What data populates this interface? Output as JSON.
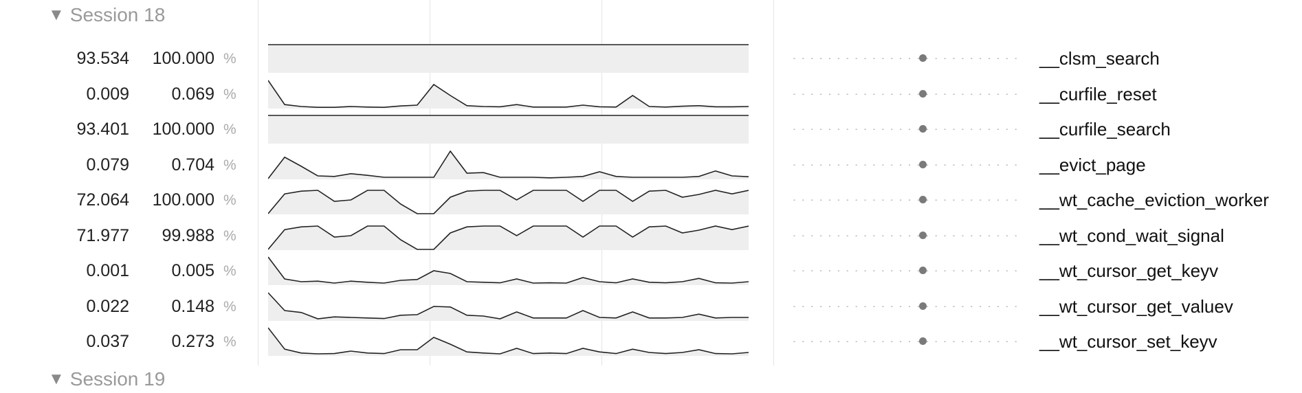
{
  "session": {
    "label": "Session 18",
    "next_label": "Session 19",
    "triangle": "▼"
  },
  "percent_symbol": "%",
  "colors": {
    "spark_fill": "#eeeeee",
    "spark_line": "#222222",
    "knob": "#7a7a7a"
  },
  "rows": [
    {
      "time": "93.534",
      "percent": "100.000",
      "function": "__clsm_search",
      "sparkline": [
        1,
        1,
        1,
        1,
        1,
        1,
        1,
        1,
        1,
        1,
        1,
        1,
        1,
        1,
        1,
        1,
        1,
        1,
        1,
        1,
        1,
        1,
        1,
        1,
        1,
        1,
        1,
        1,
        1,
        1
      ]
    },
    {
      "time": "0.009",
      "percent": "0.069",
      "function": "__curfile_reset",
      "sparkline": [
        1,
        0.12,
        0.05,
        0.02,
        0.02,
        0.05,
        0.03,
        0.02,
        0.07,
        0.1,
        0.85,
        0.45,
        0.08,
        0.05,
        0.04,
        0.12,
        0.03,
        0.03,
        0.03,
        0.1,
        0.04,
        0.03,
        0.45,
        0.05,
        0.03,
        0.06,
        0.08,
        0.04,
        0.04,
        0.05
      ]
    },
    {
      "time": "93.401",
      "percent": "100.000",
      "function": "__curfile_search",
      "sparkline": [
        1,
        1,
        1,
        1,
        1,
        1,
        1,
        1,
        1,
        1,
        1,
        1,
        1,
        1,
        1,
        1,
        1,
        1,
        1,
        1,
        1,
        1,
        1,
        1,
        1,
        1,
        1,
        1,
        1,
        1
      ]
    },
    {
      "time": "0.079",
      "percent": "0.704",
      "function": "__evict_page",
      "sparkline": [
        0,
        0.78,
        0.45,
        0.1,
        0.08,
        0.18,
        0.12,
        0.05,
        0.05,
        0.05,
        0.05,
        1,
        0.2,
        0.22,
        0.05,
        0.05,
        0.05,
        0.03,
        0.05,
        0.08,
        0.25,
        0.08,
        0.05,
        0.05,
        0.05,
        0.05,
        0.08,
        0.28,
        0.1,
        0.07
      ]
    },
    {
      "time": "72.064",
      "percent": "100.000",
      "function": "__wt_cache_eviction_worker",
      "sparkline": [
        0,
        0.72,
        0.82,
        0.85,
        0.45,
        0.5,
        0.85,
        0.85,
        0.35,
        0,
        0,
        0.6,
        0.82,
        0.85,
        0.85,
        0.5,
        0.85,
        0.85,
        0.85,
        0.45,
        0.85,
        0.85,
        0.45,
        0.82,
        0.85,
        0.6,
        0.7,
        0.85,
        0.72,
        0.85
      ]
    },
    {
      "time": "71.977",
      "percent": "99.988",
      "function": "__wt_cond_wait_signal",
      "sparkline": [
        0,
        0.72,
        0.82,
        0.85,
        0.45,
        0.5,
        0.85,
        0.85,
        0.35,
        0,
        0,
        0.6,
        0.82,
        0.85,
        0.85,
        0.5,
        0.85,
        0.85,
        0.85,
        0.45,
        0.85,
        0.85,
        0.45,
        0.82,
        0.85,
        0.6,
        0.7,
        0.85,
        0.72,
        0.85
      ]
    },
    {
      "time": "0.001",
      "percent": "0.005",
      "function": "__wt_cursor_get_keyv",
      "sparkline": [
        1,
        0.2,
        0.1,
        0.12,
        0.05,
        0.12,
        0.08,
        0.05,
        0.15,
        0.18,
        0.5,
        0.4,
        0.1,
        0.08,
        0.06,
        0.2,
        0.05,
        0.06,
        0.05,
        0.25,
        0.1,
        0.06,
        0.2,
        0.08,
        0.06,
        0.1,
        0.22,
        0.06,
        0.05,
        0.1
      ]
    },
    {
      "time": "0.022",
      "percent": "0.148",
      "function": "__wt_cursor_get_valuev",
      "sparkline": [
        1,
        0.35,
        0.28,
        0.05,
        0.12,
        0.1,
        0.08,
        0.06,
        0.18,
        0.2,
        0.5,
        0.48,
        0.18,
        0.15,
        0.05,
        0.3,
        0.08,
        0.08,
        0.08,
        0.35,
        0.1,
        0.08,
        0.3,
        0.08,
        0.08,
        0.1,
        0.22,
        0.08,
        0.1,
        0.1
      ]
    },
    {
      "time": "0.037",
      "percent": "0.273",
      "function": "__wt_cursor_set_keyv",
      "sparkline": [
        1,
        0.22,
        0.08,
        0.05,
        0.06,
        0.15,
        0.08,
        0.06,
        0.2,
        0.2,
        0.65,
        0.4,
        0.12,
        0.08,
        0.05,
        0.25,
        0.06,
        0.08,
        0.06,
        0.25,
        0.12,
        0.06,
        0.22,
        0.1,
        0.06,
        0.1,
        0.2,
        0.06,
        0.05,
        0.1
      ]
    }
  ]
}
